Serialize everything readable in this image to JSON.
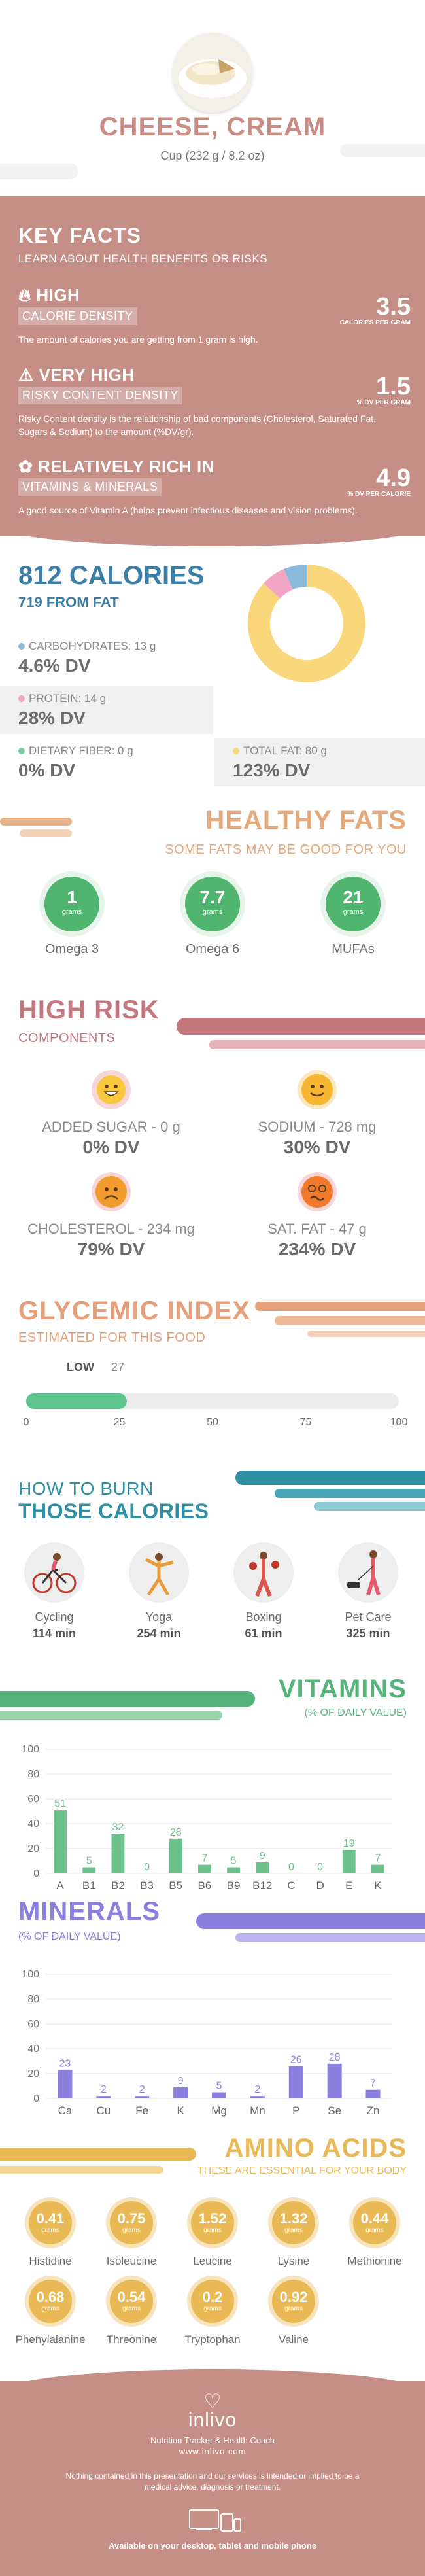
{
  "header": {
    "title": "CHEESE, CREAM",
    "serving": "Cup (232 g / 8.2 oz)"
  },
  "key_facts": {
    "title": "KEY FACTS",
    "subtitle": "LEARN ABOUT HEALTH BENEFITS OR RISKS",
    "items": [
      {
        "level": "HIGH",
        "label": "CALORIE DENSITY",
        "value": "3.5",
        "unit": "CALORIES PER GRAM",
        "desc": "The amount of calories you are getting from 1 gram is high.",
        "icon": "fire-icon"
      },
      {
        "level": "VERY HIGH",
        "label": "RISKY CONTENT DENSITY",
        "value": "1.5",
        "unit": "% DV PER GRAM",
        "desc": "Risky Content density is the relationship of bad components (Cholesterol, Saturated Fat, Sugars & Sodium) to the amount (%DV/gr).",
        "icon": "warning-icon"
      },
      {
        "level": "RELATIVELY RICH IN",
        "label": "VITAMINS & MINERALS",
        "value": "4.9",
        "unit": "% DV PER CALORIE",
        "desc": "A good source of Vitamin A (helps prevent infectious diseases and vision problems).",
        "icon": "leaf-icon"
      }
    ]
  },
  "calories": {
    "title": "812 CALORIES",
    "from_fat": "719 FROM FAT",
    "nutrients": [
      {
        "label": "CARBOHYDRATES: 13 g",
        "dv": "4.6% DV",
        "color": "#8ab9de"
      },
      {
        "label": "PROTEIN: 14 g",
        "dv": "28% DV",
        "color": "#f2a6c4"
      },
      {
        "label": "DIETARY FIBER: 0 g",
        "dv": "0% DV",
        "color": "#78c8a0"
      },
      {
        "label": "TOTAL FAT: 80 g",
        "dv": "123% DV",
        "color": "#f9d77a"
      }
    ],
    "donut": [
      {
        "name": "fat",
        "value": 719,
        "color": "#f9d77a"
      },
      {
        "name": "protein",
        "value": 56,
        "color": "#f2a6c4"
      },
      {
        "name": "carbs",
        "value": 52,
        "color": "#8ab9de"
      }
    ]
  },
  "healthy_fats": {
    "title": "HEALTHY FATS",
    "subtitle": "SOME FATS MAY BE GOOD FOR YOU",
    "unit": "grams",
    "items": [
      {
        "name": "Omega 3",
        "value": "1"
      },
      {
        "name": "Omega 6",
        "value": "7.7"
      },
      {
        "name": "MUFAs",
        "value": "21"
      }
    ]
  },
  "high_risk": {
    "title": "HIGH RISK",
    "subtitle": "COMPONENTS",
    "items": [
      {
        "label": "ADDED SUGAR - 0 g",
        "dv": "0% DV",
        "mood": "happy"
      },
      {
        "label": "SODIUM - 728 mg",
        "dv": "30% DV",
        "mood": "smile"
      },
      {
        "label": "CHOLESTEROL - 234 mg",
        "dv": "79% DV",
        "mood": "sad"
      },
      {
        "label": "SAT. FAT - 47 g",
        "dv": "234% DV",
        "mood": "dizzy"
      }
    ]
  },
  "glycemic": {
    "title": "GLYCEMIC INDEX",
    "subtitle": "ESTIMATED FOR THIS FOOD",
    "level": "LOW",
    "value": 27,
    "value_text": "27",
    "max": 100,
    "ticks": [
      "0",
      "25",
      "50",
      "75",
      "100"
    ]
  },
  "burn": {
    "title_line1": "HOW TO BURN",
    "title_line2": "THOSE CALORIES",
    "items": [
      {
        "name": "Cycling",
        "minutes": "114 min",
        "icon": "cycling-icon"
      },
      {
        "name": "Yoga",
        "minutes": "254 min",
        "icon": "yoga-icon"
      },
      {
        "name": "Boxing",
        "minutes": "61 min",
        "icon": "boxing-icon"
      },
      {
        "name": "Pet Care",
        "minutes": "325 min",
        "icon": "pet-care-icon"
      }
    ]
  },
  "vitamins": {
    "title": "VITAMINS",
    "subtitle": "(% OF DAILY VALUE)",
    "chart_data": {
      "type": "bar",
      "categories": [
        "A",
        "B1",
        "B2",
        "B3",
        "B5",
        "B6",
        "B9",
        "B12",
        "C",
        "D",
        "E",
        "K"
      ],
      "values": [
        51,
        5,
        32,
        0,
        28,
        7,
        5,
        9,
        0,
        0,
        19,
        7
      ],
      "ylim": [
        0,
        100
      ],
      "yticks": [
        "0",
        "20",
        "40",
        "60",
        "80",
        "100"
      ],
      "color": "#6cc08b"
    }
  },
  "minerals": {
    "title": "MINERALS",
    "subtitle": "(% OF DAILY VALUE)",
    "chart_data": {
      "type": "bar",
      "categories": [
        "Ca",
        "Cu",
        "Fe",
        "K",
        "Mg",
        "Mn",
        "P",
        "Se",
        "Zn"
      ],
      "values": [
        23,
        2,
        2,
        9,
        5,
        2,
        26,
        28,
        7
      ],
      "ylim": [
        0,
        100
      ],
      "yticks": [
        "0",
        "20",
        "40",
        "60",
        "80",
        "100"
      ],
      "color": "#8b7fe0"
    }
  },
  "amino": {
    "title": "AMINO ACIDS",
    "subtitle": "THESE ARE ESSENTIAL FOR YOUR BODY",
    "unit": "grams",
    "items": [
      {
        "name": "Histidine",
        "value": "0.41"
      },
      {
        "name": "Isoleucine",
        "value": "0.75"
      },
      {
        "name": "Leucine",
        "value": "1.52"
      },
      {
        "name": "Lysine",
        "value": "1.32"
      },
      {
        "name": "Methionine",
        "value": "0.44"
      },
      {
        "name": "Phenylalanine",
        "value": "0.68"
      },
      {
        "name": "Threonine",
        "value": "0.54"
      },
      {
        "name": "Tryptophan",
        "value": "0.2"
      },
      {
        "name": "Valine",
        "value": "0.92"
      }
    ]
  },
  "footer": {
    "brand": "inlivo",
    "tagline": "Nutrition Tracker & Health Coach",
    "url": "www.inlivo.com",
    "disclaimer": "Nothing contained in this presentation and our services is intended or implied to be a medical advice, diagnosis or treatment.",
    "available": "Available on your desktop, tablet and mobile phone"
  }
}
